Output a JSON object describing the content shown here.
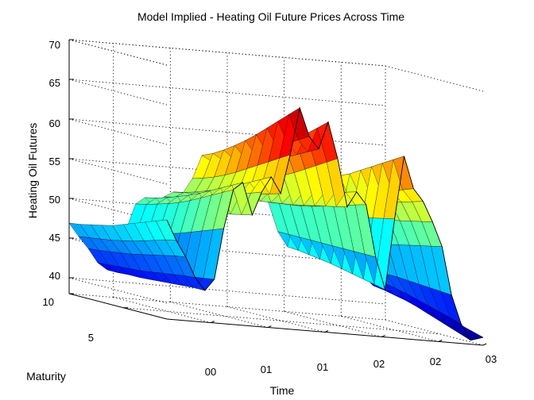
{
  "chart_data": {
    "type": "surface",
    "title": "Model Implied - Heating Oil Future Prices Across Time",
    "xlabel": "Time",
    "ylabel": "Maturity",
    "zlabel": "Heating Oil Futures",
    "x_tick_labels": [
      "00",
      "01",
      "01",
      "02",
      "02",
      "03"
    ],
    "y_tick_labels": [
      "5",
      "10"
    ],
    "z_tick_labels": [
      "40",
      "45",
      "50",
      "55",
      "60",
      "65",
      "70"
    ],
    "zlim": [
      38,
      70
    ],
    "ylim": [
      1,
      10
    ],
    "grid": true,
    "colormap": "jet",
    "maturities": [
      1,
      2,
      3,
      4,
      5,
      6,
      7,
      8,
      9,
      10
    ],
    "series": [
      {
        "time": 0.0,
        "values": [
          50.5,
          50.0,
          49.5,
          49.0,
          48.5,
          48.0,
          47.7,
          47.4,
          47.1,
          46.9
        ]
      },
      {
        "time": 0.03,
        "values": [
          48.0,
          47.7,
          47.3,
          46.9,
          46.5,
          46.2,
          45.9,
          45.7,
          45.5,
          45.3
        ]
      },
      {
        "time": 0.06,
        "values": [
          46.0,
          45.8,
          45.5,
          45.2,
          44.9,
          44.6,
          44.4,
          44.2,
          44.0,
          43.9
        ]
      },
      {
        "time": 0.09,
        "values": [
          43.5,
          43.4,
          43.2,
          43.0,
          42.8,
          42.6,
          42.5,
          42.4,
          42.3,
          42.2
        ]
      },
      {
        "time": 0.12,
        "values": [
          42.0,
          42.0,
          41.9,
          41.8,
          41.7,
          41.6,
          41.5,
          41.5,
          41.4,
          41.4
        ]
      },
      {
        "time": 0.15,
        "values": [
          43.5,
          43.3,
          43.1,
          42.9,
          42.7,
          42.6,
          42.5,
          42.4,
          42.3,
          42.2
        ]
      },
      {
        "time": 0.18,
        "values": [
          50.0,
          49.5,
          49.0,
          48.5,
          48.0,
          47.6,
          47.3,
          47.0,
          46.8,
          46.6
        ]
      },
      {
        "time": 0.21,
        "values": [
          55.0,
          54.3,
          53.6,
          52.9,
          52.2,
          51.6,
          51.1,
          50.7,
          50.3,
          50.0
        ]
      },
      {
        "time": 0.24,
        "values": [
          56.0,
          55.3,
          54.6,
          53.9,
          53.2,
          52.6,
          52.1,
          51.6,
          51.2,
          50.9
        ]
      },
      {
        "time": 0.27,
        "values": [
          52.0,
          51.7,
          51.4,
          51.1,
          50.8,
          50.5,
          50.3,
          50.1,
          49.9,
          49.8
        ]
      },
      {
        "time": 0.3,
        "values": [
          55.0,
          54.5,
          54.0,
          53.5,
          53.0,
          52.5,
          52.1,
          51.8,
          51.5,
          51.2
        ]
      },
      {
        "time": 0.33,
        "values": [
          57.0,
          56.3,
          55.6,
          54.9,
          54.2,
          53.6,
          53.1,
          52.6,
          52.2,
          51.9
        ]
      },
      {
        "time": 0.36,
        "values": [
          55.0,
          54.6,
          54.2,
          53.8,
          53.4,
          53.0,
          52.7,
          52.4,
          52.1,
          51.9
        ]
      },
      {
        "time": 0.39,
        "values": [
          60.0,
          59.2,
          58.4,
          57.6,
          56.8,
          56.0,
          55.3,
          54.7,
          54.2,
          53.8
        ]
      },
      {
        "time": 0.42,
        "values": [
          66.0,
          64.8,
          63.6,
          62.4,
          61.2,
          60.1,
          59.1,
          58.2,
          57.4,
          56.8
        ]
      },
      {
        "time": 0.45,
        "values": [
          62.5,
          61.7,
          60.9,
          60.1,
          59.3,
          58.5,
          57.8,
          57.2,
          56.7,
          56.2
        ]
      },
      {
        "time": 0.48,
        "values": [
          61.0,
          60.3,
          59.6,
          58.9,
          58.2,
          57.5,
          56.9,
          56.4,
          56.0,
          55.6
        ]
      },
      {
        "time": 0.51,
        "values": [
          64.5,
          63.4,
          62.3,
          61.2,
          60.1,
          59.1,
          58.2,
          57.4,
          56.8,
          56.2
        ]
      },
      {
        "time": 0.54,
        "values": [
          60.0,
          59.2,
          58.4,
          57.6,
          56.8,
          56.1,
          55.5,
          55.0,
          54.6,
          54.2
        ]
      },
      {
        "time": 0.57,
        "values": [
          54.0,
          53.7,
          53.4,
          53.1,
          52.8,
          52.5,
          52.3,
          52.1,
          51.9,
          51.8
        ]
      },
      {
        "time": 0.6,
        "values": [
          56.0,
          55.6,
          55.2,
          54.8,
          54.4,
          54.0,
          53.7,
          53.4,
          53.2,
          53.0
        ]
      },
      {
        "time": 0.63,
        "values": [
          54.5,
          54.1,
          53.7,
          53.3,
          52.9,
          52.5,
          52.2,
          52.0,
          51.8,
          51.6
        ]
      },
      {
        "time": 0.66,
        "values": [
          48.0,
          48.0,
          48.0,
          48.0,
          48.0,
          48.0,
          48.0,
          48.0,
          48.0,
          48.0
        ]
      },
      {
        "time": 0.69,
        "values": [
          44.0,
          44.3,
          44.6,
          44.9,
          45.2,
          45.5,
          45.7,
          45.9,
          46.1,
          46.2
        ]
      },
      {
        "time": 0.72,
        "values": [
          53.0,
          52.7,
          52.4,
          52.1,
          51.8,
          51.5,
          51.3,
          51.1,
          50.9,
          50.8
        ]
      },
      {
        "time": 0.75,
        "values": [
          61.0,
          60.2,
          59.4,
          58.6,
          57.8,
          57.0,
          56.4,
          55.8,
          55.3,
          54.9
        ]
      },
      {
        "time": 0.78,
        "values": [
          57.0,
          56.5,
          56.0,
          55.5,
          55.0,
          54.5,
          54.1,
          53.7,
          53.4,
          53.1
        ]
      },
      {
        "time": 0.81,
        "values": [
          55.5,
          55.1,
          54.7,
          54.3,
          53.9,
          53.5,
          53.2,
          52.9,
          52.6,
          52.4
        ]
      },
      {
        "time": 0.84,
        "values": [
          53.0,
          52.7,
          52.4,
          52.1,
          51.8,
          51.5,
          51.3,
          51.1,
          50.9,
          50.7
        ]
      },
      {
        "time": 0.87,
        "values": [
          50.0,
          49.7,
          49.4,
          49.1,
          48.8,
          48.5,
          48.3,
          48.1,
          47.9,
          47.8
        ]
      },
      {
        "time": 0.9,
        "values": [
          44.0,
          44.1,
          44.2,
          44.3,
          44.4,
          44.5,
          44.5,
          44.6,
          44.6,
          44.7
        ]
      },
      {
        "time": 0.93,
        "values": [
          40.5,
          40.9,
          41.3,
          41.7,
          42.1,
          42.5,
          42.8,
          43.1,
          43.3,
          43.5
        ]
      },
      {
        "time": 0.96,
        "values": [
          38.5,
          39.0,
          39.5,
          40.0,
          40.5,
          41.0,
          41.4,
          41.7,
          42.0,
          42.2
        ]
      },
      {
        "time": 1.0,
        "values": [
          39.0,
          39.4,
          39.8,
          40.2,
          40.6,
          41.0,
          41.3,
          41.6,
          41.9,
          42.1
        ]
      }
    ]
  }
}
